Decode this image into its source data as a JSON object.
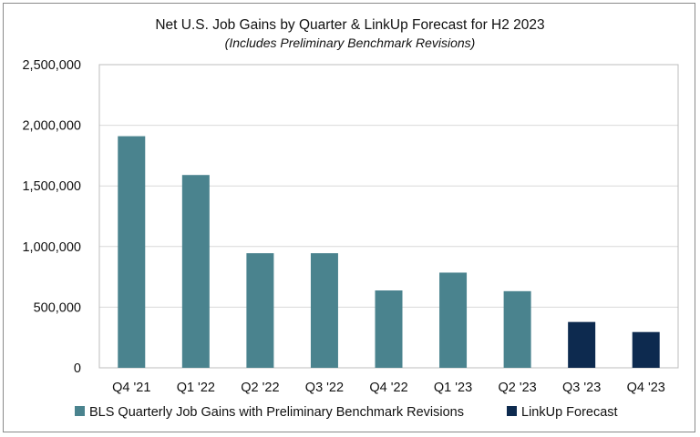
{
  "chart_data": {
    "type": "bar",
    "title": "Net U.S. Job Gains by Quarter & LinkUp Forecast for H2 2023",
    "subtitle": "(Includes Preliminary Benchmark Revisions)",
    "xlabel": "",
    "ylabel": "",
    "categories": [
      "Q4 '21",
      "Q1 '22",
      "Q2 '22",
      "Q3 '22",
      "Q4 '22",
      "Q1 '23",
      "Q2 '23",
      "Q3 '23",
      "Q4 '23"
    ],
    "values": [
      1910000,
      1590000,
      945000,
      945000,
      638000,
      785000,
      632000,
      378000,
      295000
    ],
    "series_index": [
      0,
      0,
      0,
      0,
      0,
      0,
      0,
      1,
      1
    ],
    "series": [
      {
        "name": "BLS Quarterly Job Gains with Preliminary Benchmark Revisions",
        "color": "#4a838e"
      },
      {
        "name": "LinkUp Forecast",
        "color": "#0d2a4f"
      }
    ],
    "ylim": [
      0,
      2500000
    ],
    "yticks": [
      0,
      500000,
      1000000,
      1500000,
      2000000,
      2500000
    ],
    "ytick_labels": [
      "0",
      "500,000",
      "1,000,000",
      "1,500,000",
      "2,000,000",
      "2,500,000"
    ],
    "grid": true,
    "legend_position": "bottom"
  }
}
